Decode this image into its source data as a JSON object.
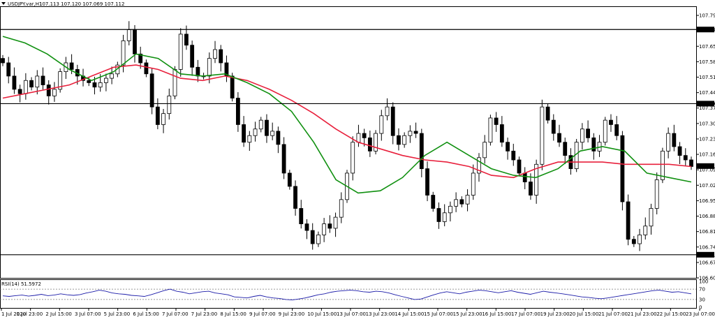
{
  "header": {
    "menu_icon": "triangle-down-icon",
    "symbol_timeframe": "USDJPY.var,H1",
    "ohlc": "107.113 107.120 107.069 107.112"
  },
  "rsi_panel": {
    "label": "RSI(14) 51.5972",
    "levels": [
      70,
      30
    ],
    "scale_labels": [
      "100",
      "70",
      "30",
      "0"
    ],
    "color": "#1a1aa8",
    "values": [
      44,
      42,
      45,
      47,
      43,
      46,
      50,
      45,
      47,
      52,
      48,
      46,
      49,
      55,
      60,
      66,
      62,
      55,
      52,
      50,
      46,
      44,
      42,
      48,
      56,
      64,
      70,
      62,
      58,
      52,
      56,
      60,
      62,
      55,
      52,
      48,
      40,
      38,
      36,
      42,
      46,
      40,
      36,
      34,
      30,
      28,
      32,
      36,
      42,
      48,
      52,
      58,
      62,
      64,
      66,
      64,
      60,
      58,
      62,
      60,
      55,
      48,
      42,
      36,
      30,
      32,
      40,
      48,
      55,
      60,
      56,
      52,
      58,
      62,
      66,
      64,
      60,
      56,
      60,
      64,
      58,
      54,
      50,
      56,
      62,
      58,
      55,
      52,
      48,
      44,
      40,
      38,
      35,
      33,
      36,
      40,
      44,
      48,
      52,
      56,
      60,
      64,
      66,
      62,
      58,
      60,
      56,
      52
    ]
  },
  "chart_data": {
    "type": "candlestick",
    "symbol": "USDJPY.var",
    "timeframe": "H1",
    "x_ticks": [
      "1 Jul 2020",
      "1 Jul 23:00",
      "2 Jul 15:00",
      "3 Jul 07:00",
      "5 Jul 23:00",
      "6 Jul 15:00",
      "7 Jul 07:00",
      "7 Jul 23:00",
      "8 Jul 15:00",
      "9 Jul 07:00",
      "9 Jul 23:00",
      "10 Jul 15:00",
      "13 Jul 07:00",
      "13 Jul 23:00",
      "14 Jul 15:00",
      "15 Jul 07:00",
      "15 Jul 23:00",
      "16 Jul 15:00",
      "17 Jul 07:00",
      "19 Jul 23:00",
      "20 Jul 15:00",
      "21 Jul 07:00",
      "21 Jul 23:00",
      "22 Jul 15:00",
      "23 Jul 07:00"
    ],
    "y_ticks": [
      "107.795",
      "107.655",
      "107.585",
      "107.515",
      "107.445",
      "107.375",
      "107.305",
      "107.235",
      "107.165",
      "107.095",
      "107.025",
      "106.955",
      "106.885",
      "106.815",
      "106.745",
      "106.675",
      "106.605"
    ],
    "ylim": [
      106.605,
      107.83
    ],
    "current_price": "107.112",
    "horizontal_levels": [
      {
        "value": 107.731,
        "label": "107.731"
      },
      {
        "value": 107.395,
        "label": "107.395"
      },
      {
        "value": 106.71,
        "label": "106.710"
      }
    ],
    "colors": {
      "candles": "#000000",
      "ma_slow": "#e8203c",
      "ma_fast": "#109010",
      "levels": "#000000"
    },
    "closes": [
      107.58,
      107.52,
      107.46,
      107.44,
      107.5,
      107.47,
      107.52,
      107.48,
      107.43,
      107.46,
      107.54,
      107.58,
      107.55,
      107.52,
      107.5,
      107.49,
      107.47,
      107.49,
      107.51,
      107.53,
      107.57,
      107.68,
      107.73,
      107.62,
      107.58,
      107.53,
      107.38,
      107.3,
      107.35,
      107.43,
      107.55,
      107.71,
      107.66,
      107.56,
      107.52,
      107.52,
      107.6,
      107.64,
      107.58,
      107.52,
      107.42,
      107.3,
      107.22,
      107.25,
      107.28,
      107.32,
      107.25,
      107.27,
      107.21,
      107.08,
      107.02,
      106.92,
      106.85,
      106.82,
      106.76,
      106.8,
      106.85,
      106.83,
      106.88,
      106.96,
      107.08,
      107.22,
      107.26,
      107.24,
      107.18,
      107.26,
      107.34,
      107.38,
      107.25,
      107.21,
      107.25,
      107.27,
      107.26,
      107.1,
      106.98,
      106.92,
      106.86,
      106.9,
      106.93,
      106.96,
      106.94,
      106.98,
      107.08,
      107.15,
      107.22,
      107.33,
      107.3,
      107.22,
      107.18,
      107.14,
      107.08,
      107.04,
      106.98,
      107.12,
      107.38,
      107.32,
      107.26,
      107.22,
      107.16,
      107.1,
      107.22,
      107.28,
      107.24,
      107.18,
      107.22,
      107.32,
      107.3,
      107.25,
      106.95,
      106.78,
      106.76,
      106.8,
      106.84,
      106.92,
      107.05,
      107.18,
      107.26,
      107.2,
      107.16,
      107.14,
      107.11
    ],
    "ma_slow_values": [
      107.42,
      107.44,
      107.46,
      107.48,
      107.52,
      107.56,
      107.57,
      107.55,
      107.51,
      107.5,
      107.52,
      107.5,
      107.46,
      107.41,
      107.35,
      107.28,
      107.22,
      107.19,
      107.16,
      107.14,
      107.13,
      107.11,
      107.07,
      107.06,
      107.1,
      107.13,
      107.13,
      107.13,
      107.12,
      107.12,
      107.12,
      107.11
    ],
    "ma_fast_values": [
      107.7,
      107.67,
      107.62,
      107.55,
      107.5,
      107.54,
      107.62,
      107.6,
      107.53,
      107.52,
      107.53,
      107.49,
      107.44,
      107.36,
      107.22,
      107.05,
      106.99,
      107.0,
      107.06,
      107.16,
      107.22,
      107.16,
      107.1,
      107.07,
      107.06,
      107.1,
      107.18,
      107.2,
      107.18,
      107.08,
      107.06,
      107.04
    ]
  }
}
